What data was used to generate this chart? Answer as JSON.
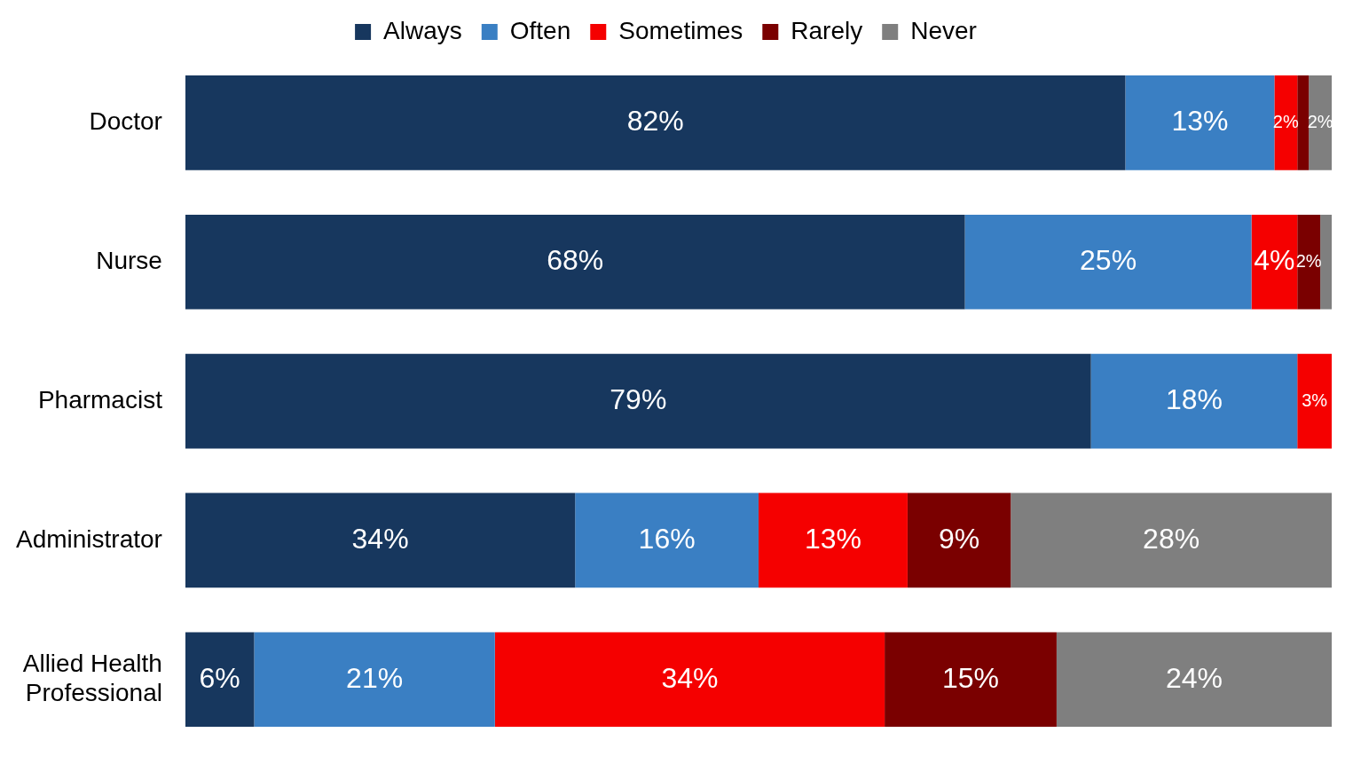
{
  "chart_data": {
    "type": "bar",
    "orientation": "horizontal",
    "stacked": true,
    "legend": "top",
    "tick_labels": "y",
    "grid": false,
    "categories": [
      "Doctor",
      "Nurse",
      "Pharmacist",
      "Administrator",
      "Allied Health Professional"
    ],
    "series": [
      {
        "name": "Always",
        "color": "#17375e",
        "values": [
          82,
          68,
          79,
          34,
          6
        ],
        "value_labels": [
          "82%",
          "68%",
          "79%",
          "34%",
          "6%"
        ]
      },
      {
        "name": "Often",
        "color": "#3a7fc3",
        "values": [
          13,
          25,
          18,
          16,
          21
        ],
        "value_labels": [
          "13%",
          "25%",
          "18%",
          "16%",
          "21%"
        ]
      },
      {
        "name": "Sometimes",
        "color": "#f50000",
        "values": [
          2,
          4,
          3,
          13,
          34
        ],
        "value_labels": [
          "2%",
          "4%",
          "3%",
          "13%",
          "34%"
        ]
      },
      {
        "name": "Rarely",
        "color": "#7a0000",
        "values": [
          1,
          2,
          null,
          9,
          15
        ],
        "value_labels": [
          null,
          "2%",
          null,
          "9%",
          "15%"
        ]
      },
      {
        "name": "Never",
        "color": "#7f7f7f",
        "values": [
          2,
          1,
          null,
          28,
          24
        ],
        "value_labels": [
          "2%",
          null,
          null,
          "28%",
          "24%"
        ]
      }
    ]
  }
}
